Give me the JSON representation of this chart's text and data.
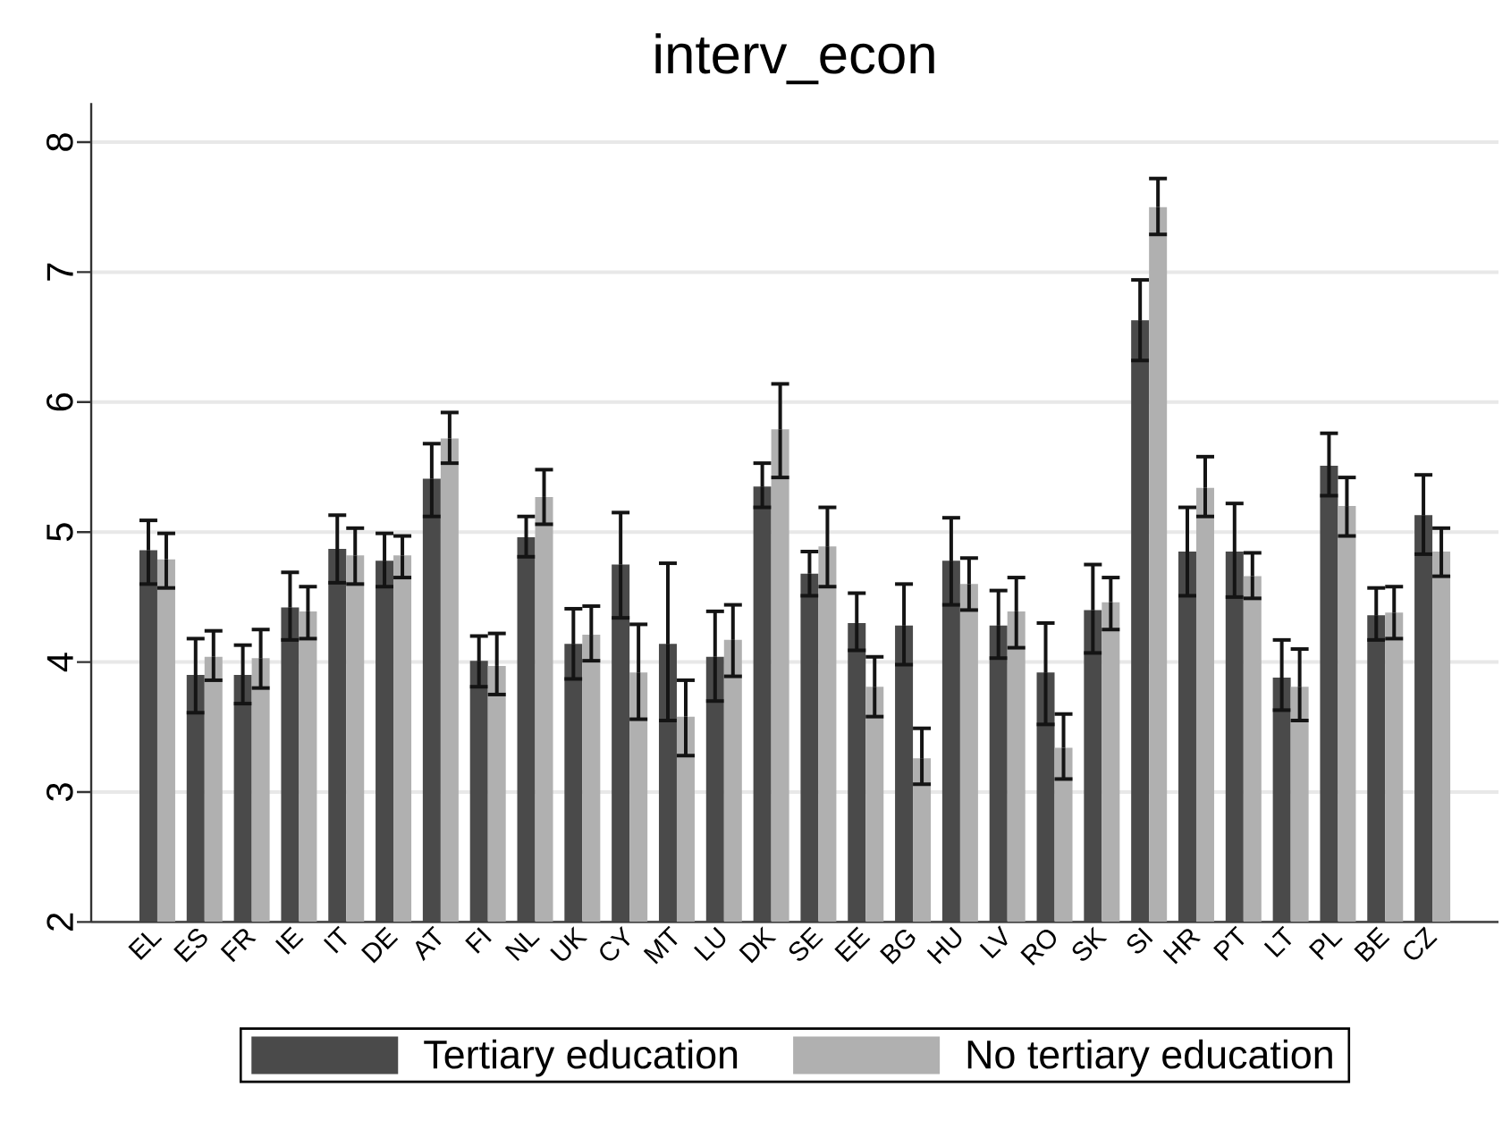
{
  "chart_data": {
    "type": "bar",
    "title": "interv_econ",
    "categories": [
      "EL",
      "ES",
      "FR",
      "IE",
      "IT",
      "DE",
      "AT",
      "FI",
      "NL",
      "UK",
      "CY",
      "MT",
      "LU",
      "DK",
      "SE",
      "EE",
      "BG",
      "HU",
      "LV",
      "RO",
      "SK",
      "SI",
      "HR",
      "PT",
      "LT",
      "PL",
      "BE",
      "CZ"
    ],
    "series": [
      {
        "name": "Tertiary education",
        "color": "#4a4a4a",
        "values": [
          4.86,
          3.9,
          3.9,
          4.42,
          4.87,
          4.78,
          5.41,
          4.01,
          4.96,
          4.14,
          4.75,
          4.14,
          4.04,
          5.35,
          4.68,
          4.3,
          4.28,
          4.78,
          4.28,
          3.92,
          4.4,
          6.63,
          4.85,
          4.85,
          3.88,
          5.51,
          4.36,
          5.13
        ],
        "errors": [
          [
            4.6,
            5.09
          ],
          [
            3.61,
            4.18
          ],
          [
            3.68,
            4.13
          ],
          [
            4.17,
            4.69
          ],
          [
            4.61,
            5.13
          ],
          [
            4.58,
            4.99
          ],
          [
            5.12,
            5.68
          ],
          [
            3.81,
            4.2
          ],
          [
            4.81,
            5.12
          ],
          [
            3.87,
            4.41
          ],
          [
            4.34,
            5.15
          ],
          [
            3.55,
            4.76
          ],
          [
            3.7,
            4.39
          ],
          [
            5.19,
            5.53
          ],
          [
            4.51,
            4.85
          ],
          [
            4.09,
            4.53
          ],
          [
            3.98,
            4.6
          ],
          [
            4.44,
            5.11
          ],
          [
            4.03,
            4.55
          ],
          [
            3.52,
            4.3
          ],
          [
            4.07,
            4.75
          ],
          [
            6.32,
            6.94
          ],
          [
            4.51,
            5.19
          ],
          [
            4.5,
            5.22
          ],
          [
            3.63,
            4.17
          ],
          [
            5.28,
            5.76
          ],
          [
            4.17,
            4.57
          ],
          [
            4.83,
            5.44
          ]
        ]
      },
      {
        "name": "No tertiary education",
        "color": "#b0b0b0",
        "values": [
          4.79,
          4.04,
          4.03,
          4.39,
          4.82,
          4.82,
          5.72,
          3.97,
          5.27,
          4.21,
          3.92,
          3.58,
          4.17,
          5.79,
          4.89,
          3.81,
          3.26,
          4.6,
          4.39,
          3.34,
          4.46,
          7.5,
          5.34,
          4.66,
          3.81,
          5.2,
          4.38,
          4.85
        ],
        "errors": [
          [
            4.57,
            4.99
          ],
          [
            3.86,
            4.24
          ],
          [
            3.8,
            4.25
          ],
          [
            4.18,
            4.58
          ],
          [
            4.6,
            5.03
          ],
          [
            4.65,
            4.97
          ],
          [
            5.53,
            5.92
          ],
          [
            3.75,
            4.22
          ],
          [
            5.06,
            5.48
          ],
          [
            4.01,
            4.43
          ],
          [
            3.56,
            4.29
          ],
          [
            3.28,
            3.86
          ],
          [
            3.89,
            4.44
          ],
          [
            5.42,
            6.14
          ],
          [
            4.58,
            5.19
          ],
          [
            3.58,
            4.04
          ],
          [
            3.06,
            3.49
          ],
          [
            4.4,
            4.8
          ],
          [
            4.11,
            4.65
          ],
          [
            3.1,
            3.6
          ],
          [
            4.25,
            4.65
          ],
          [
            7.29,
            7.72
          ],
          [
            5.12,
            5.58
          ],
          [
            4.49,
            4.84
          ],
          [
            3.55,
            4.1
          ],
          [
            4.97,
            5.42
          ],
          [
            4.18,
            4.58
          ],
          [
            4.66,
            5.03
          ]
        ]
      }
    ],
    "ylim": [
      2,
      8.3
    ],
    "yticks": [
      2,
      3,
      4,
      5,
      6,
      7,
      8
    ],
    "grid": "y",
    "legend": "bottom"
  }
}
